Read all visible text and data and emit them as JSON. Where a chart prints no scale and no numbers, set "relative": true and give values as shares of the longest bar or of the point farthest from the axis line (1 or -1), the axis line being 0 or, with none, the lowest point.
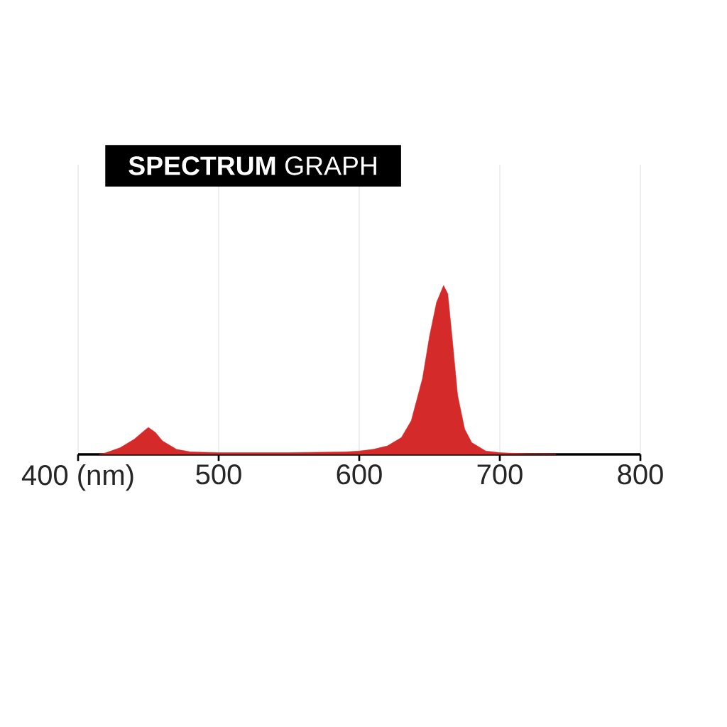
{
  "chart_data": {
    "type": "area",
    "title": "**SPECTRUM** GRAPH",
    "relative": true,
    "grid": true,
    "tick_labels": "x",
    "xlim": [
      400,
      800
    ],
    "xticks": [
      {
        "value": 400,
        "label": "400 (nm)"
      },
      500,
      600,
      700,
      800
    ],
    "series": [
      {
        "color": "#d42a2a",
        "x": [
          415,
          420,
          430,
          440,
          447,
          450,
          455,
          460,
          470,
          480,
          500,
          550,
          590,
          600,
          610,
          620,
          630,
          637,
          645,
          650,
          655,
          660,
          663,
          666,
          670,
          675,
          680,
          690,
          700,
          720,
          740
        ],
        "values": [
          0,
          0.01,
          0.04,
          0.09,
          0.14,
          0.16,
          0.13,
          0.08,
          0.03,
          0.015,
          0.01,
          0.01,
          0.015,
          0.02,
          0.03,
          0.05,
          0.1,
          0.2,
          0.45,
          0.7,
          0.9,
          1.0,
          0.95,
          0.7,
          0.35,
          0.15,
          0.07,
          0.02,
          0.01,
          0.003,
          0
        ]
      }
    ]
  }
}
